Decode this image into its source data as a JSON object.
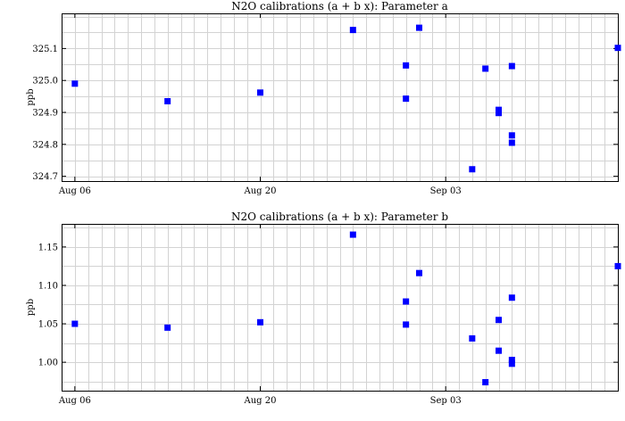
{
  "chart_data": [
    {
      "type": "scatter",
      "title": "N2O calibrations (a + b x): Parameter a",
      "ylabel": "ppb",
      "xlabel": "",
      "x_ticks": [
        "Aug 06",
        "Aug 20",
        "Sep 03"
      ],
      "y_ticks": [
        "324.7",
        "324.8",
        "324.9",
        "325.0",
        "325.1"
      ],
      "ylim": [
        324.685,
        325.21
      ],
      "xlim": [
        "2007-08-05",
        "2007-09-16"
      ],
      "grid": true,
      "marker_color": "#0000ff",
      "points": [
        {
          "x": "2007-08-06",
          "y": 324.99
        },
        {
          "x": "2007-08-13",
          "y": 324.935
        },
        {
          "x": "2007-08-20",
          "y": 324.962
        },
        {
          "x": "2007-08-27",
          "y": 325.158
        },
        {
          "x": "2007-08-31",
          "y": 325.047
        },
        {
          "x": "2007-08-31",
          "y": 324.943
        },
        {
          "x": "2007-09-01",
          "y": 325.165
        },
        {
          "x": "2007-09-05",
          "y": 324.722
        },
        {
          "x": "2007-09-06",
          "y": 325.037
        },
        {
          "x": "2007-09-07",
          "y": 324.898
        },
        {
          "x": "2007-09-07",
          "y": 324.908
        },
        {
          "x": "2007-09-08",
          "y": 325.045
        },
        {
          "x": "2007-09-08",
          "y": 324.805
        },
        {
          "x": "2007-09-08",
          "y": 324.828
        },
        {
          "x": "2007-09-16",
          "y": 325.102
        }
      ]
    },
    {
      "type": "scatter",
      "title": "N2O calibrations (a + b x): Parameter b",
      "ylabel": "ppb",
      "xlabel": "",
      "x_ticks": [
        "Aug 06",
        "Aug 20",
        "Sep 03"
      ],
      "y_ticks": [
        "1.00",
        "1.05",
        "1.10",
        "1.15"
      ],
      "ylim": [
        0.963,
        1.18
      ],
      "xlim": [
        "2007-08-05",
        "2007-09-16"
      ],
      "grid": true,
      "marker_color": "#0000ff",
      "points": [
        {
          "x": "2007-08-06",
          "y": 1.05
        },
        {
          "x": "2007-08-13",
          "y": 1.045
        },
        {
          "x": "2007-08-20",
          "y": 1.052
        },
        {
          "x": "2007-08-27",
          "y": 1.166
        },
        {
          "x": "2007-08-31",
          "y": 1.079
        },
        {
          "x": "2007-08-31",
          "y": 1.049
        },
        {
          "x": "2007-09-01",
          "y": 1.116
        },
        {
          "x": "2007-09-05",
          "y": 1.031
        },
        {
          "x": "2007-09-06",
          "y": 0.974
        },
        {
          "x": "2007-09-07",
          "y": 1.055
        },
        {
          "x": "2007-09-07",
          "y": 1.015
        },
        {
          "x": "2007-09-08",
          "y": 1.084
        },
        {
          "x": "2007-09-08",
          "y": 1.003
        },
        {
          "x": "2007-09-08",
          "y": 0.998
        },
        {
          "x": "2007-09-16",
          "y": 1.125
        }
      ]
    }
  ]
}
